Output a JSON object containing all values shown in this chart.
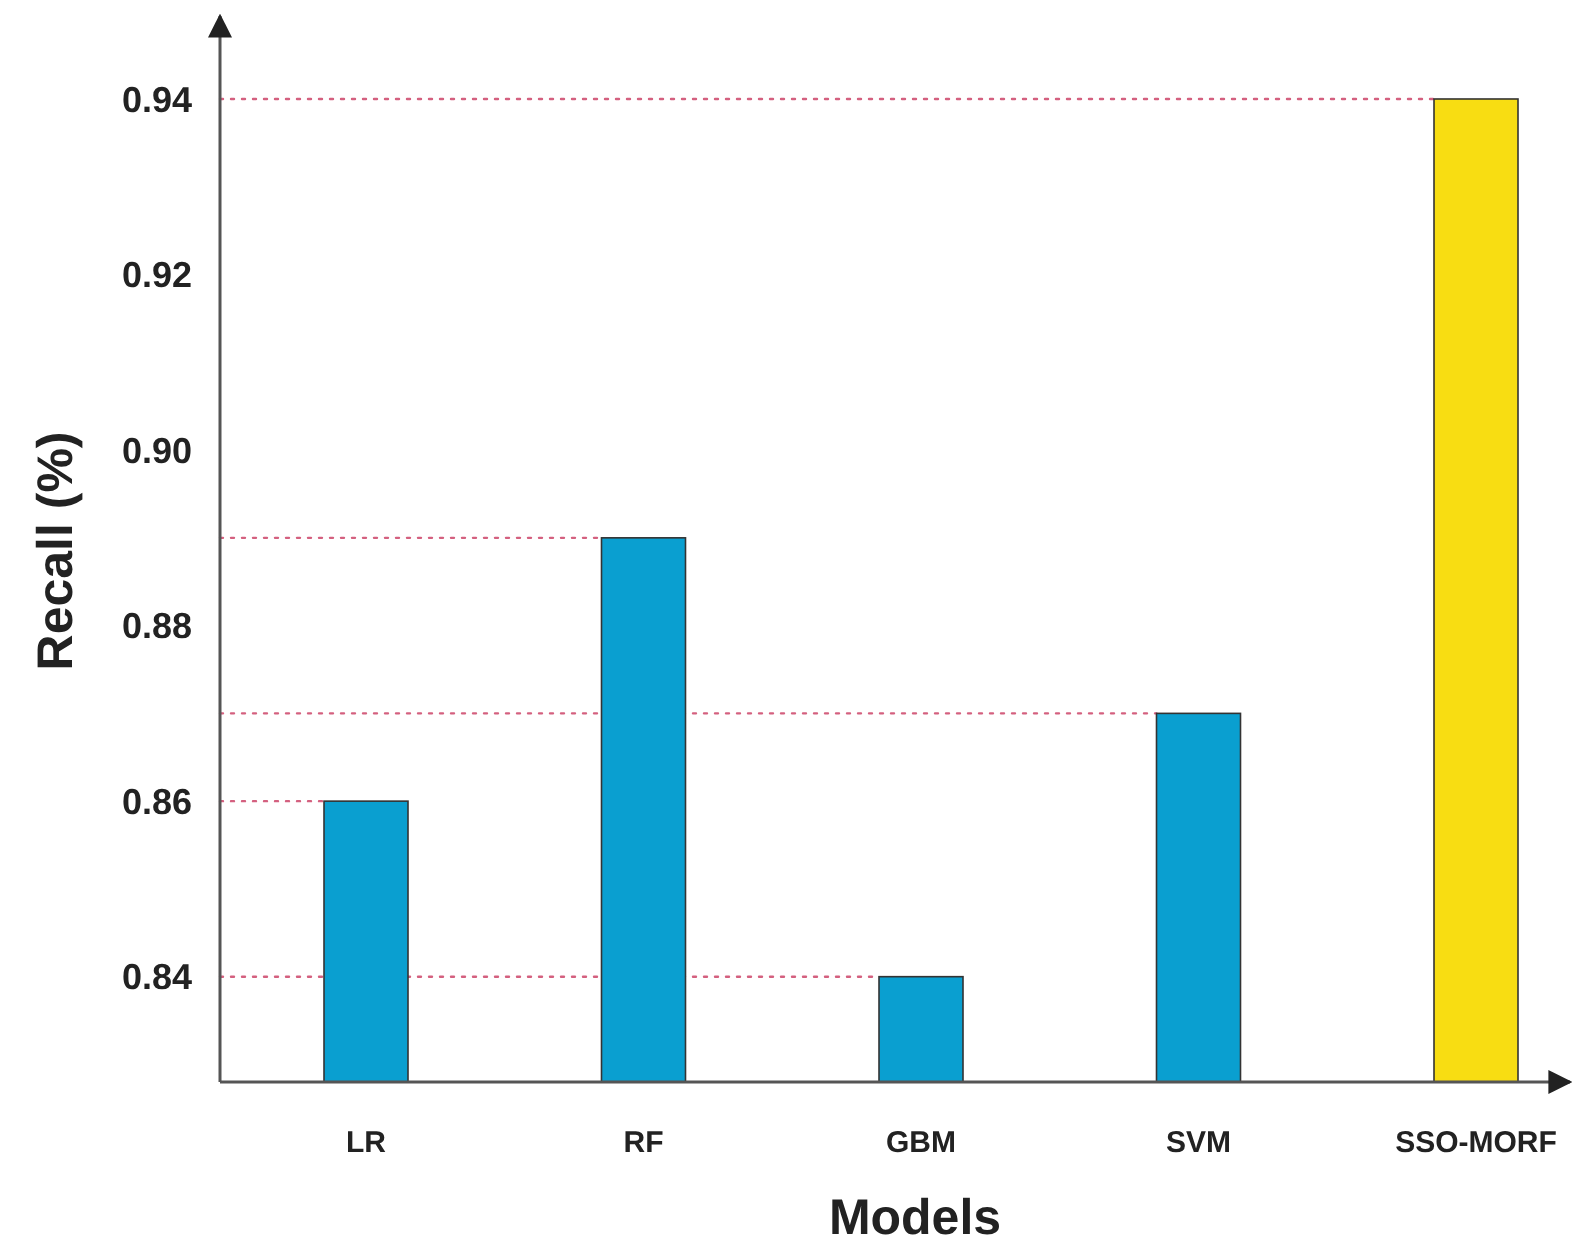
{
  "chart_data": {
    "type": "bar",
    "xlabel": "Models",
    "ylabel": "Recall (%)",
    "categories": [
      "LR",
      "RF",
      "GBM",
      "SVM",
      "SSO-MORF"
    ],
    "values": [
      0.86,
      0.89,
      0.84,
      0.87,
      0.94
    ],
    "colors": [
      "#0a9fd0",
      "#0a9fd0",
      "#0a9fd0",
      "#0a9fd0",
      "#f8dd12"
    ],
    "ylim": [
      0.828,
      0.949
    ],
    "yticks": [
      0.84,
      0.86,
      0.88,
      {
        "value": 0.9,
        "label": "0.90"
      },
      0.92,
      0.94
    ],
    "ref_lines": [
      {
        "axis": "y",
        "value": 0.94,
        "color": "#d4607f",
        "line_style": "dotted"
      },
      {
        "axis": "y",
        "value": 0.89,
        "color": "#d4607f",
        "line_style": "dotted"
      },
      {
        "axis": "y",
        "value": 0.87,
        "color": "#d4607f",
        "line_style": "dotted"
      },
      {
        "axis": "y",
        "value": 0.86,
        "color": "#d4607f",
        "line_style": "dotted"
      },
      {
        "axis": "y",
        "value": 0.84,
        "color": "#d4607f",
        "line_style": "dotted"
      }
    ]
  }
}
